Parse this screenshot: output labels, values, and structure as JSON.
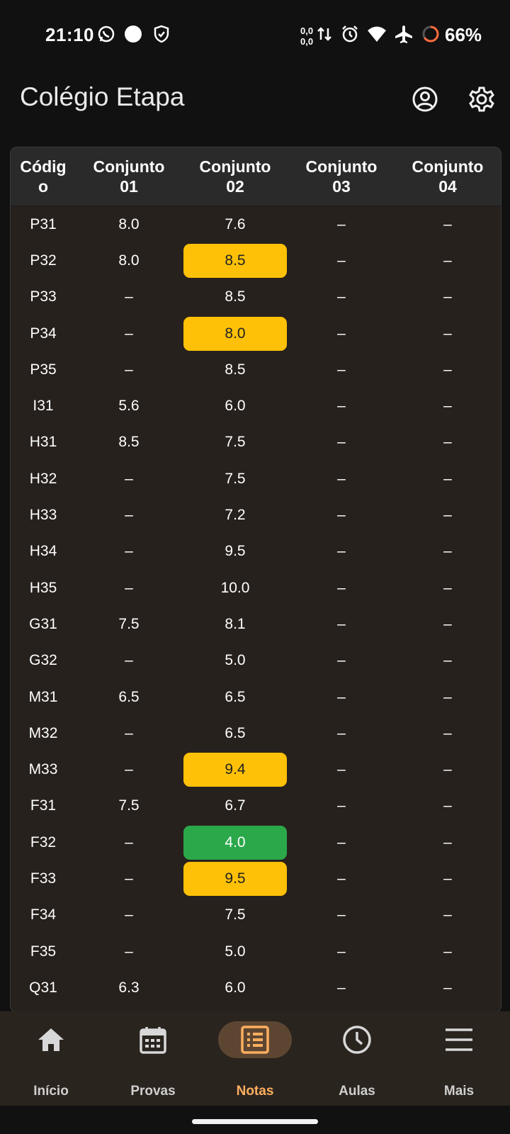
{
  "status_bar": {
    "time": "21:10",
    "net_up": "0,0",
    "net_down": "0,0",
    "battery": "66%",
    "icons": [
      "whatsapp-icon",
      "dot-icon",
      "shield-icon",
      "data-arrows-icon",
      "alarm-icon",
      "wifi-icon",
      "airplane-icon",
      "battery-ring-icon"
    ]
  },
  "app_bar": {
    "title": "Colégio Etapa",
    "icons": [
      "account-icon",
      "settings-icon"
    ]
  },
  "table": {
    "headers": [
      {
        "l1": "Códig",
        "l2": "o"
      },
      {
        "l1": "Conjunto",
        "l2": "01"
      },
      {
        "l1": "Conjunto",
        "l2": "02"
      },
      {
        "l1": "Conjunto",
        "l2": "03"
      },
      {
        "l1": "Conjunto",
        "l2": "04"
      }
    ],
    "rows": [
      {
        "c": [
          "P31",
          "8.0",
          "7.6",
          "–",
          "–"
        ]
      },
      {
        "c": [
          "P32",
          "8.0",
          "8.5",
          "–",
          "–"
        ],
        "hl": "yellow"
      },
      {
        "c": [
          "P33",
          "–",
          "8.5",
          "–",
          "–"
        ]
      },
      {
        "c": [
          "P34",
          "–",
          "8.0",
          "–",
          "–"
        ],
        "hl": "yellow"
      },
      {
        "c": [
          "P35",
          "–",
          "8.5",
          "–",
          "–"
        ]
      },
      {
        "c": [
          "I31",
          "5.6",
          "6.0",
          "–",
          "–"
        ]
      },
      {
        "c": [
          "H31",
          "8.5",
          "7.5",
          "–",
          "–"
        ]
      },
      {
        "c": [
          "H32",
          "–",
          "7.5",
          "–",
          "–"
        ]
      },
      {
        "c": [
          "H33",
          "–",
          "7.2",
          "–",
          "–"
        ]
      },
      {
        "c": [
          "H34",
          "–",
          "9.5",
          "–",
          "–"
        ]
      },
      {
        "c": [
          "H35",
          "–",
          "10.0",
          "–",
          "–"
        ]
      },
      {
        "c": [
          "G31",
          "7.5",
          "8.1",
          "–",
          "–"
        ]
      },
      {
        "c": [
          "G32",
          "–",
          "5.0",
          "–",
          "–"
        ]
      },
      {
        "c": [
          "M31",
          "6.5",
          "6.5",
          "–",
          "–"
        ]
      },
      {
        "c": [
          "M32",
          "–",
          "6.5",
          "–",
          "–"
        ]
      },
      {
        "c": [
          "M33",
          "–",
          "9.4",
          "–",
          "–"
        ],
        "hl": "yellow"
      },
      {
        "c": [
          "F31",
          "7.5",
          "6.7",
          "–",
          "–"
        ]
      },
      {
        "c": [
          "F32",
          "–",
          "4.0",
          "–",
          "–"
        ],
        "hl": "green"
      },
      {
        "c": [
          "F33",
          "–",
          "9.5",
          "–",
          "–"
        ],
        "hl": "yellow"
      },
      {
        "c": [
          "F34",
          "–",
          "7.5",
          "–",
          "–"
        ]
      },
      {
        "c": [
          "F35",
          "–",
          "5.0",
          "–",
          "–"
        ]
      },
      {
        "c": [
          "Q31",
          "6.3",
          "6.0",
          "–",
          "–"
        ]
      }
    ],
    "colors": {
      "yellow": "#ffc107",
      "green": "#2aa84a"
    }
  },
  "bottom_nav": {
    "items": [
      {
        "label": "Início",
        "icon": "home-icon",
        "active": false
      },
      {
        "label": "Provas",
        "icon": "calendar-icon",
        "active": false
      },
      {
        "label": "Notas",
        "icon": "grades-list-icon",
        "active": true
      },
      {
        "label": "Aulas",
        "icon": "clock-icon",
        "active": false
      },
      {
        "label": "Mais",
        "icon": "menu-icon",
        "active": false
      }
    ],
    "accent": "#ffaf5f"
  }
}
